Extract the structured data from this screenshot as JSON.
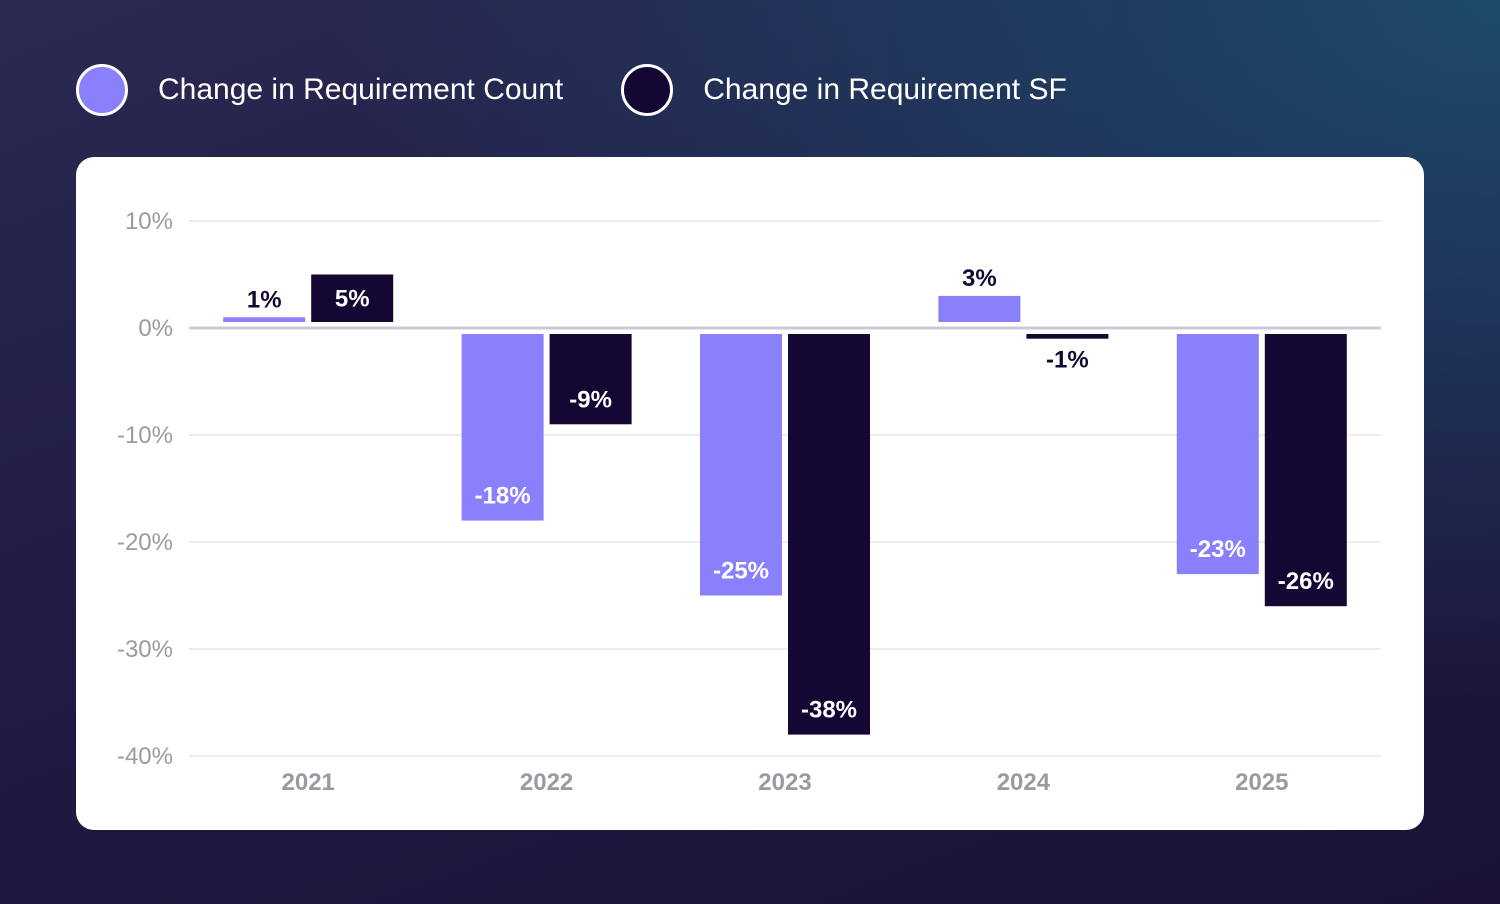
{
  "colors": {
    "count": "#8b80fb",
    "sf": "#150733",
    "grid": "#d9d9de",
    "zero_line": "#c9ccd6",
    "tick": "#9a9aa3",
    "label_dark": "#150733",
    "label_light": "#ffffff"
  },
  "legend": {
    "items": [
      {
        "label": "Change in Requirement Count",
        "color": "#8b80fb"
      },
      {
        "label": "Change in Requirement SF",
        "color": "#150733"
      }
    ]
  },
  "chart_data": {
    "type": "bar",
    "categories": [
      "2021",
      "2022",
      "2023",
      "2024",
      "2025"
    ],
    "series": [
      {
        "name": "Change in Requirement Count",
        "values": [
          1,
          -18,
          -25,
          3,
          -23
        ],
        "labels": [
          "1%",
          "-18%",
          "-25%",
          "3%",
          "-23%"
        ]
      },
      {
        "name": "Change in Requirement SF",
        "values": [
          5,
          -9,
          -38,
          -1,
          -26
        ],
        "labels": [
          "5%",
          "-9%",
          "-38%",
          "-1%",
          "-26%"
        ]
      }
    ],
    "title": "",
    "xlabel": "",
    "ylabel": "",
    "ylim": [
      -40,
      10
    ],
    "yticks": [
      10,
      0,
      -10,
      -20,
      -30,
      -40
    ],
    "ytick_labels": [
      "10%",
      "0%",
      "-10%",
      "-20%",
      "-30%",
      "-40%"
    ],
    "grid": true,
    "legend_position": "top-left, outside chart"
  }
}
